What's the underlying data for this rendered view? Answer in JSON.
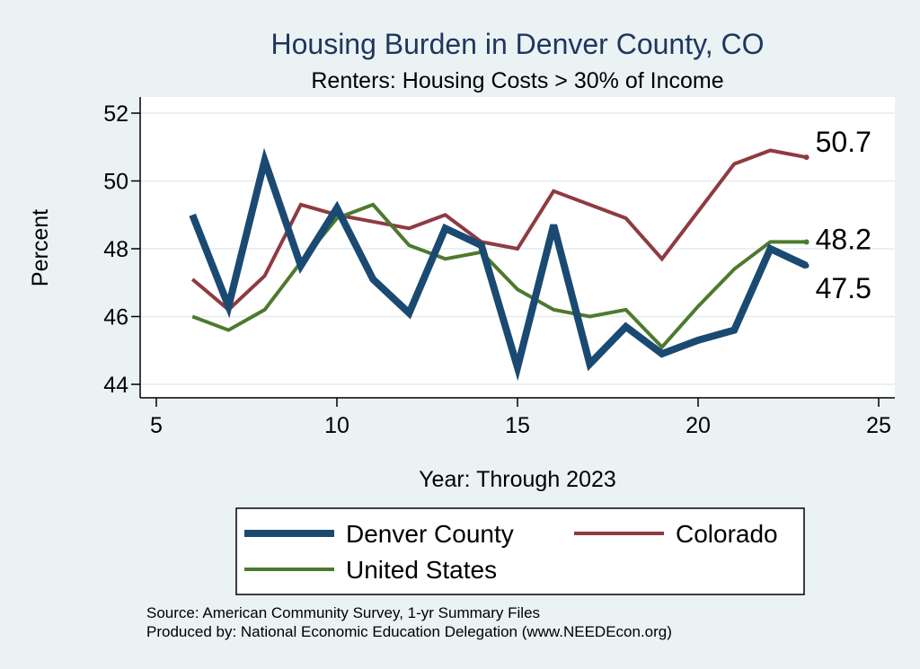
{
  "chart_data": {
    "type": "line",
    "title": "Housing Burden in Denver County, CO",
    "subtitle": "Renters: Housing Costs > 30% of Income",
    "xlabel": "Year: Through 2023",
    "ylabel": "Percent",
    "xlim": [
      5,
      25
    ],
    "ylim": [
      44,
      52
    ],
    "x_ticks": [
      5,
      10,
      15,
      20,
      25
    ],
    "y_ticks": [
      44,
      46,
      48,
      50,
      52
    ],
    "grid": true,
    "legend_position": "bottom",
    "series": [
      {
        "name": "Denver County",
        "color": "#1a4a72",
        "x": [
          6,
          7,
          8,
          9,
          10,
          11,
          12,
          13,
          14,
          15,
          16,
          17,
          18,
          19,
          20,
          21,
          22,
          23
        ],
        "values": [
          49.0,
          46.3,
          50.6,
          47.5,
          49.2,
          47.1,
          46.1,
          48.6,
          48.1,
          44.5,
          48.7,
          44.6,
          45.7,
          44.9,
          45.3,
          45.6,
          48.0,
          47.5
        ],
        "end_label": "47.5"
      },
      {
        "name": "Colorado",
        "color": "#8f3a42",
        "x": [
          6,
          7,
          8,
          9,
          10,
          11,
          12,
          13,
          14,
          15,
          16,
          17,
          18,
          19,
          20,
          21,
          22,
          23
        ],
        "values": [
          47.1,
          46.2,
          47.2,
          49.3,
          49.0,
          48.8,
          48.6,
          49.0,
          48.2,
          48.0,
          49.7,
          49.3,
          48.9,
          47.7,
          49.1,
          50.5,
          50.9,
          50.7
        ],
        "end_label": "50.7"
      },
      {
        "name": "United States",
        "color": "#4d7a2e",
        "x": [
          6,
          7,
          8,
          9,
          10,
          11,
          12,
          13,
          14,
          15,
          16,
          17,
          18,
          19,
          20,
          21,
          22,
          23
        ],
        "values": [
          46.0,
          45.6,
          46.2,
          47.6,
          48.9,
          49.3,
          48.1,
          47.7,
          47.9,
          46.8,
          46.2,
          46.0,
          46.2,
          45.1,
          46.3,
          47.4,
          48.2,
          48.2
        ],
        "end_label": "48.2"
      }
    ]
  },
  "notes": {
    "source": "Source: American Community Survey, 1-yr Summary Files",
    "produced_by": "Produced by: National Economic Education Delegation (www.NEEDEcon.org)"
  }
}
